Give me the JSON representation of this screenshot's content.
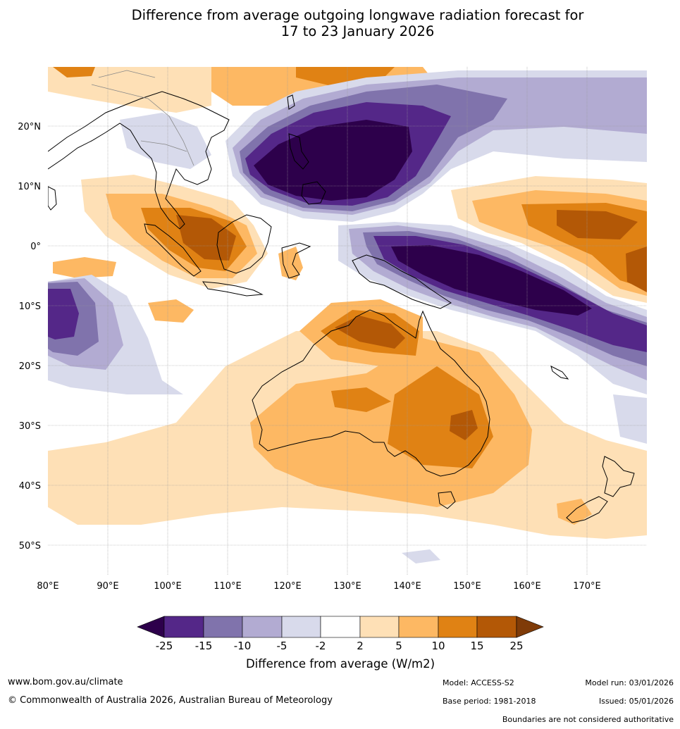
{
  "title": {
    "line1": "Difference from average outgoing longwave radiation forecast for",
    "line2": "17 to 23 January 2026"
  },
  "map": {
    "lat_labels": [
      "20°N",
      "10°N",
      "0°",
      "10°S",
      "20°S",
      "30°S",
      "40°S",
      "50°S"
    ],
    "lon_labels": [
      "80°E",
      "90°E",
      "100°E",
      "110°E",
      "120°E",
      "130°E",
      "140°E",
      "150°E",
      "160°E",
      "170°E"
    ],
    "colors": {
      "neg25": "#2d004b",
      "neg15": "#542788",
      "neg10": "#8073ac",
      "neg5": "#b2abd2",
      "neg2": "#d8daeb",
      "pos2": "#fee0b6",
      "pos5": "#fdb863",
      "pos10": "#e08214",
      "pos15": "#b35806",
      "pos25": "#7f3b08",
      "coast": "#000000",
      "border": "#888888"
    }
  },
  "colorbar": {
    "tick_labels": [
      "-25",
      "-15",
      "-10",
      "-5",
      "-2",
      "2",
      "5",
      "10",
      "15",
      "25"
    ],
    "title": "Difference from average (W/m2)"
  },
  "footer": {
    "website": "www.bom.gov.au/climate",
    "copyright": "© Commonwealth of Australia 2026, Australian Bureau of Meteorology",
    "model": "Model: ACCESS-S2",
    "base_period": "Base period: 1981-2018",
    "model_run": "Model run: 03/01/2026",
    "issued": "Issued: 05/01/2026",
    "boundaries": "Boundaries are not considered authoritative"
  }
}
